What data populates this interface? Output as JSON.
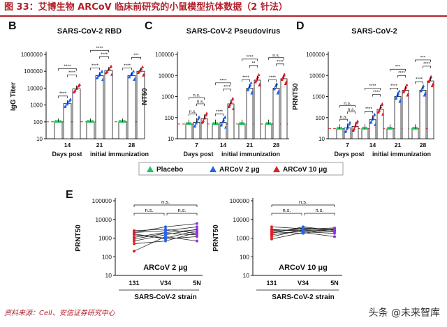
{
  "header": {
    "title": "图 33：艾博生物 ARCoV 临床前研究的小鼠模型抗体数据（2 针法）"
  },
  "footer": {
    "source": "资料来源：Cell、安信证券研究中心",
    "watermark": "头条 @未来智库"
  },
  "colors": {
    "placebo": "#22c55e",
    "low": "#2563eb",
    "high": "#e11d2a",
    "dash": "#e11d2a",
    "e_line": "#222222"
  },
  "legend": [
    {
      "name": "Placebo",
      "color": "#22c55e"
    },
    {
      "name": "ARCoV 2 μg",
      "color": "#2563eb"
    },
    {
      "name": "ARCoV 10 μg",
      "color": "#e11d2a"
    }
  ],
  "chart_data": [
    {
      "panel": "B",
      "type": "bar",
      "title": "SARS-CoV-2 RBD",
      "ylabel": "IgG Titer",
      "yscale": "log",
      "ylim": [
        10,
        1000000
      ],
      "yticks": [
        "10",
        "100",
        "1000",
        "10000",
        "100000",
        "1000000"
      ],
      "categories": [
        "14",
        "21",
        "28"
      ],
      "xlabel_left": "Days post",
      "xlabel_right": "initial immunization",
      "lod": 100,
      "series": [
        {
          "name": "Placebo",
          "values": [
            100,
            100,
            100
          ]
        },
        {
          "name": "ARCoV 2 μg",
          "values": [
            1200,
            55000,
            55000
          ]
        },
        {
          "name": "ARCoV 10 μg",
          "values": [
            9000,
            110000,
            100000
          ]
        }
      ],
      "sig": [
        "****",
        "****",
        "****",
        "****",
        "****",
        "****",
        "****",
        "***"
      ]
    },
    {
      "panel": "C",
      "type": "bar",
      "title": "SARS-CoV-2 Pseudovirus",
      "ylabel": "NT50",
      "yscale": "log",
      "ylim": [
        10,
        100000
      ],
      "yticks": [
        "10",
        "100",
        "1000",
        "10000",
        "100000"
      ],
      "categories": [
        "7",
        "14",
        "21",
        "28"
      ],
      "xlabel_left": "Days post",
      "xlabel_right": "initial immunization",
      "lod": 50,
      "series": [
        {
          "name": "Placebo",
          "values": [
            50,
            50,
            50,
            50
          ]
        },
        {
          "name": "ARCoV 2 μg",
          "values": [
            60,
            60,
            2500,
            2500
          ]
        },
        {
          "name": "ARCoV 10 μg",
          "values": [
            90,
            450,
            6000,
            7000
          ]
        }
      ],
      "sig": [
        "n.s.",
        "n.s.",
        "n.s.",
        "****",
        "****",
        "****",
        "****",
        "**",
        "****",
        "****",
        "****",
        "n.s."
      ]
    },
    {
      "panel": "D",
      "type": "bar",
      "title": "SARS-CoV-2",
      "ylabel": "PRNT50",
      "yscale": "log",
      "ylim": [
        10,
        100000
      ],
      "yticks": [
        "10",
        "100",
        "1000",
        "10000",
        "100000"
      ],
      "categories": [
        "7",
        "14",
        "21",
        "28"
      ],
      "xlabel_left": "Days post",
      "xlabel_right": "initial immunization",
      "lod": 30,
      "series": [
        {
          "name": "Placebo",
          "values": [
            30,
            30,
            30,
            30
          ]
        },
        {
          "name": "ARCoV 2 μg",
          "values": [
            33,
            80,
            1000,
            2000
          ]
        },
        {
          "name": "ARCoV 10 μg",
          "values": [
            38,
            250,
            2000,
            5500
          ]
        }
      ],
      "sig": [
        "n.s.",
        "n.s.",
        "n.s.",
        "****",
        "****",
        "****",
        "****",
        "****",
        "***",
        "****",
        "****",
        "***"
      ]
    },
    {
      "panel": "E1",
      "type": "line",
      "label": "ARCoV 2 μg",
      "ylabel": "PRNT50",
      "yscale": "log",
      "ylim": [
        10,
        100000
      ],
      "yticks": [
        "10",
        "100",
        "1000",
        "10000",
        "100000"
      ],
      "categories": [
        "131",
        "V34",
        "5N"
      ],
      "xlabel": "SARS-CoV-2 strain",
      "series": [
        [
          200,
          1200,
          700
        ],
        [
          900,
          1800,
          1500
        ],
        [
          1500,
          1000,
          2500
        ],
        [
          2000,
          2500,
          4000
        ],
        [
          2500,
          3000,
          1800
        ],
        [
          700,
          1500,
          3000
        ],
        [
          1700,
          900,
          1200
        ],
        [
          500,
          700,
          2000
        ],
        [
          2000,
          4000,
          6000
        ],
        [
          1100,
          2000,
          2800
        ]
      ],
      "sig": [
        "n.s.",
        "n.s.",
        "n.s."
      ]
    },
    {
      "panel": "E2",
      "type": "line",
      "label": "ARCoV 10 μg",
      "ylabel": "PRNT50",
      "yscale": "log",
      "ylim": [
        10,
        100000
      ],
      "yticks": [
        "10",
        "100",
        "1000",
        "10000",
        "100000"
      ],
      "categories": [
        "131",
        "V34",
        "5N"
      ],
      "xlabel": "SARS-CoV-2 strain",
      "series": [
        [
          900,
          2000,
          1200
        ],
        [
          1500,
          2500,
          3000
        ],
        [
          2000,
          3500,
          2800
        ],
        [
          2500,
          3000,
          3500
        ],
        [
          3000,
          2200,
          1800
        ],
        [
          1800,
          4000,
          2600
        ],
        [
          2200,
          1800,
          3200
        ],
        [
          1200,
          2800,
          2400
        ],
        [
          4000,
          3200,
          2900
        ],
        [
          2800,
          2500,
          2200
        ]
      ],
      "sig": [
        "n.s.",
        "n.s.",
        "n.s."
      ]
    }
  ]
}
